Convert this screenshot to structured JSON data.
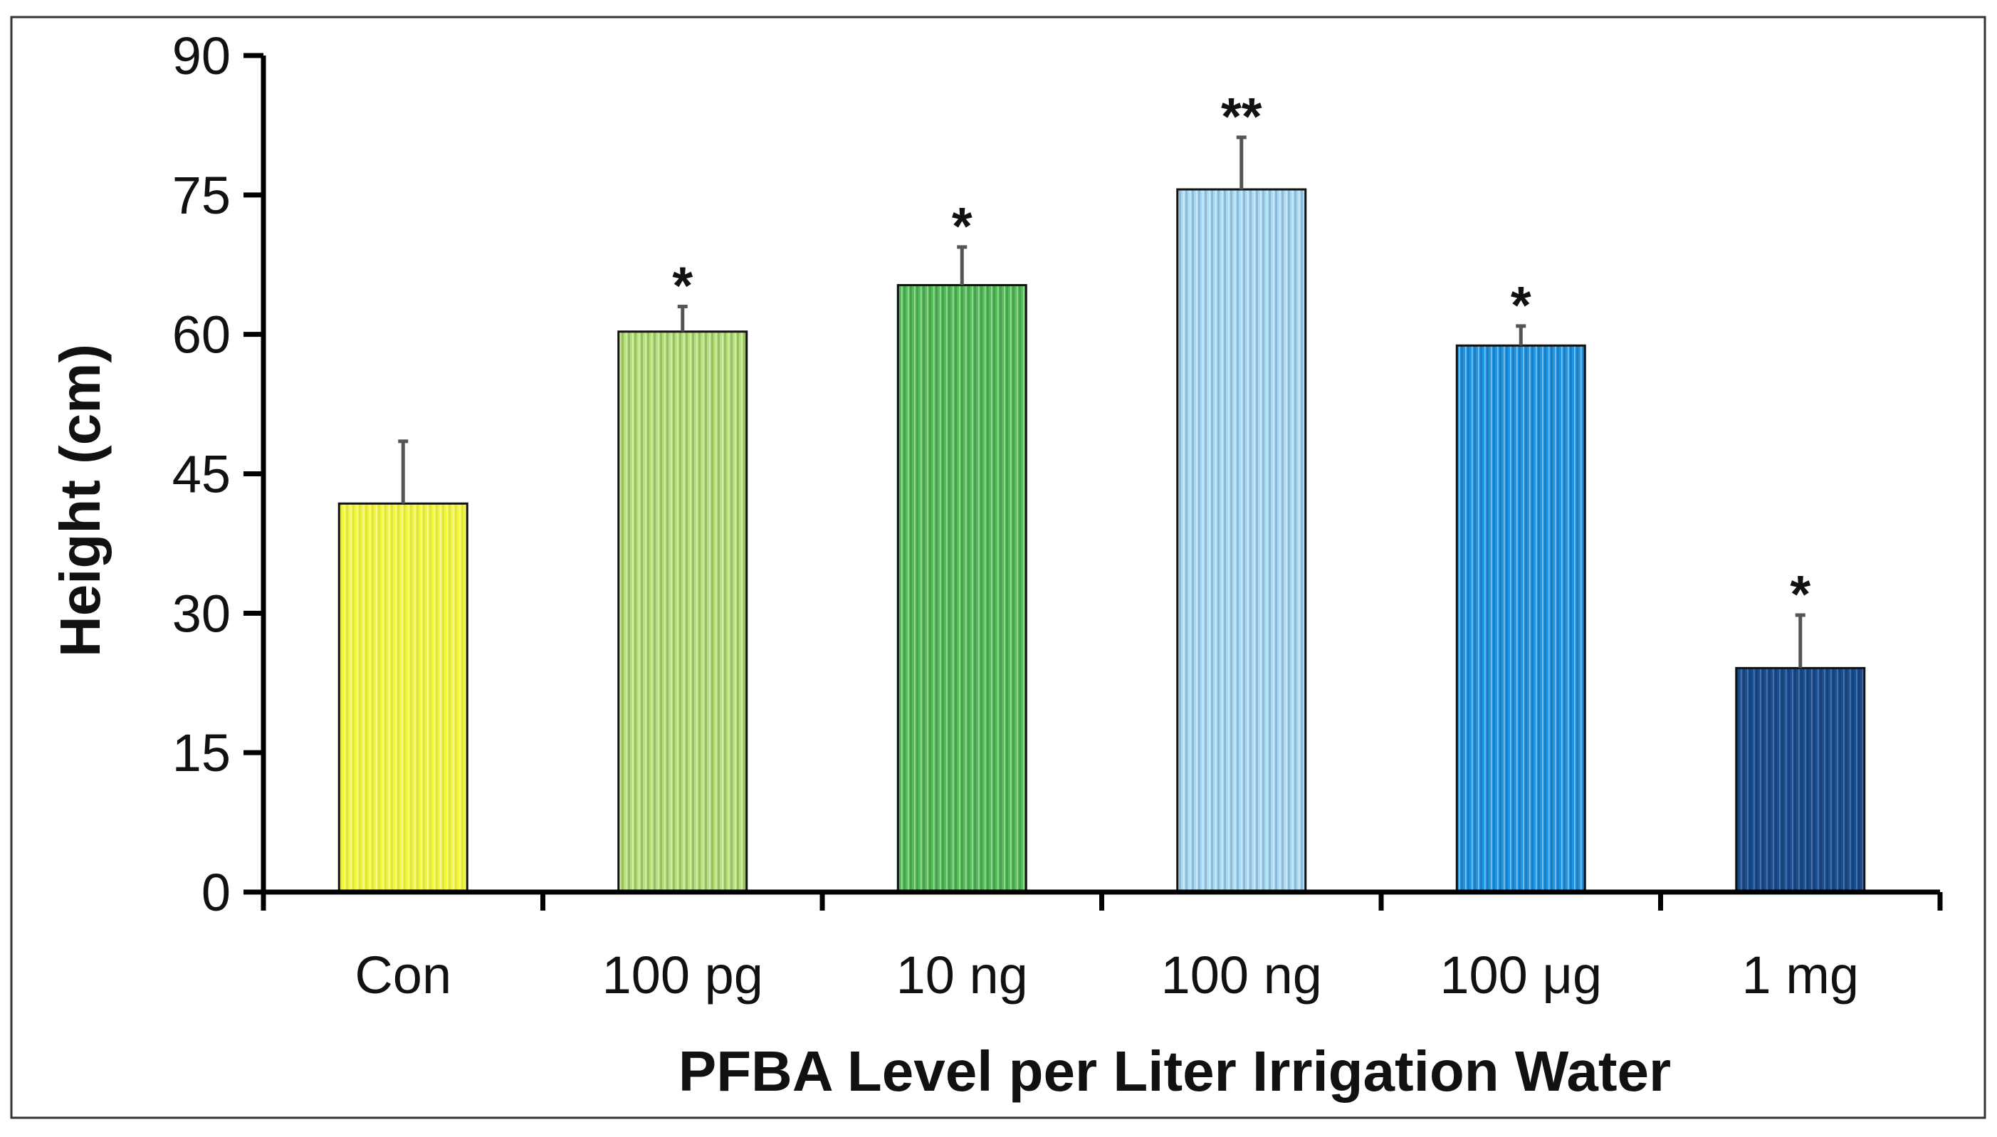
{
  "chart_data": {
    "type": "bar",
    "title": "",
    "xlabel": "PFBA Level per Liter Irrigation Water",
    "ylabel": "Height (cm)",
    "ylim": [
      0,
      90
    ],
    "yticks": [
      0,
      15,
      30,
      45,
      60,
      75,
      90
    ],
    "grid": false,
    "legend": "none",
    "categories": [
      "Con",
      "100 pg",
      "10 ng",
      "100 ng",
      "100 μg",
      "1 mg"
    ],
    "values": [
      41.8,
      60.3,
      65.3,
      75.6,
      58.8,
      24.1
    ],
    "errors": [
      6.7,
      2.7,
      4.1,
      5.6,
      2.1,
      5.7
    ],
    "significance": [
      "",
      "*",
      "*",
      "**",
      "*",
      "*"
    ],
    "colors": [
      "#f2f542",
      "#b5e07a",
      "#56bd5a",
      "#a9daf7",
      "#1f95e3",
      "#1b4d91"
    ]
  }
}
